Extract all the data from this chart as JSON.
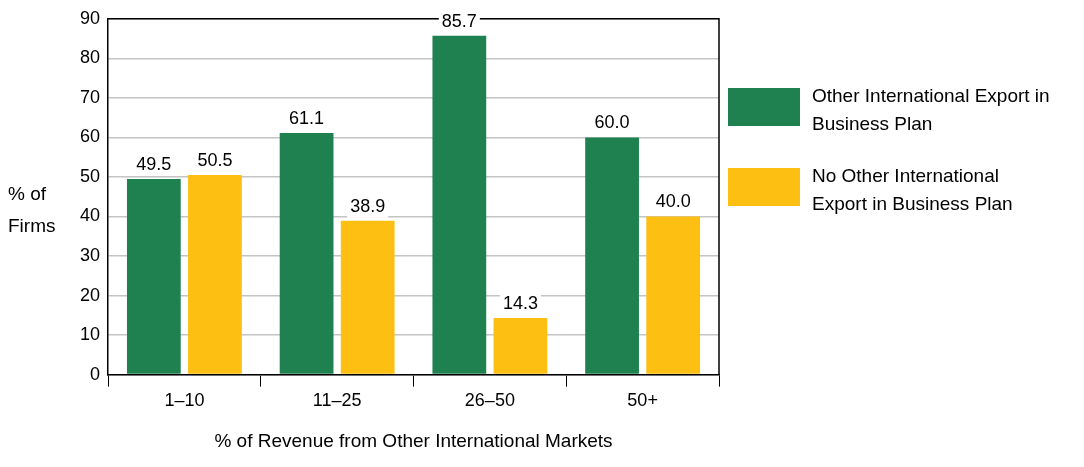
{
  "chart_data": {
    "type": "bar",
    "xlabel": "% of Revenue from Other International Markets",
    "ylabel": "% of Firms",
    "categories": [
      "1–10",
      "11–25",
      "26–50",
      "50+"
    ],
    "series": [
      {
        "name": "Other International Export in Business Plan",
        "color": "#1f8050",
        "values": [
          49.5,
          61.1,
          85.7,
          60.0
        ],
        "value_labels": [
          "49.5",
          "61.1",
          "85.7",
          "60.0"
        ]
      },
      {
        "name": "No Other International Export in Business Plan",
        "color": "#fdc012",
        "values": [
          50.5,
          38.9,
          14.3,
          40.0
        ],
        "value_labels": [
          "50.5",
          "38.9",
          "14.3",
          "40.0"
        ]
      }
    ],
    "ylim": [
      0,
      90
    ],
    "yticks": [
      0,
      10,
      20,
      30,
      40,
      50,
      60,
      70,
      80,
      90
    ],
    "grid": "y",
    "legend": "right"
  }
}
